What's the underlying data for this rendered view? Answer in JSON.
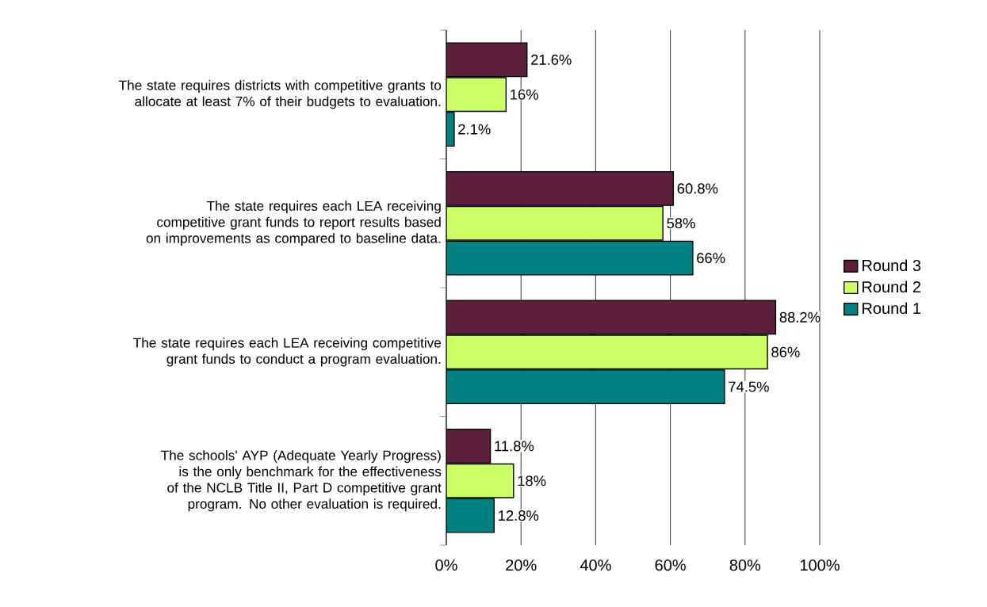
{
  "chart_data": {
    "type": "bar",
    "orientation": "horizontal",
    "categories": [
      "The state requires districts with competitive grants to allocate at least 7% of their budgets to evaluation.",
      "The state requires each LEA receiving competitive grant funds to report results based on improvements as compared to baseline data.",
      "The state requires each LEA receiving competitive grant funds to conduct a program evaluation.",
      "The schools'  AYP (Adequate Yearly Progress) is the only benchmark for the effectiveness of the NCLB Title II, Part D competitive grant program. No other evaluation is required."
    ],
    "series": [
      {
        "name": "Round 3",
        "color": "#5c1f3e",
        "values": [
          21.6,
          60.8,
          88.2,
          11.8
        ],
        "value_labels": [
          "21.6%",
          "60.8%",
          "88.2%",
          "11.8%"
        ]
      },
      {
        "name": "Round 2",
        "color": "#ccff66",
        "values": [
          16,
          58,
          86,
          18
        ],
        "value_labels": [
          "16%",
          "58%",
          "86%",
          "18%"
        ]
      },
      {
        "name": "Round 1",
        "color": "#008080",
        "values": [
          2.1,
          66,
          74.5,
          12.8
        ],
        "value_labels": [
          "2.1%",
          "66%",
          "74.5%",
          "12.8%"
        ]
      }
    ],
    "xlim": [
      0,
      100
    ],
    "xticks": [
      {
        "value": 0,
        "label": "0%"
      },
      {
        "value": 20,
        "label": "20%"
      },
      {
        "value": 40,
        "label": "40%"
      },
      {
        "value": 60,
        "label": "60%"
      },
      {
        "value": 80,
        "label": "80%"
      },
      {
        "value": 100,
        "label": "100%"
      }
    ],
    "grid": "x",
    "legend": "right"
  }
}
